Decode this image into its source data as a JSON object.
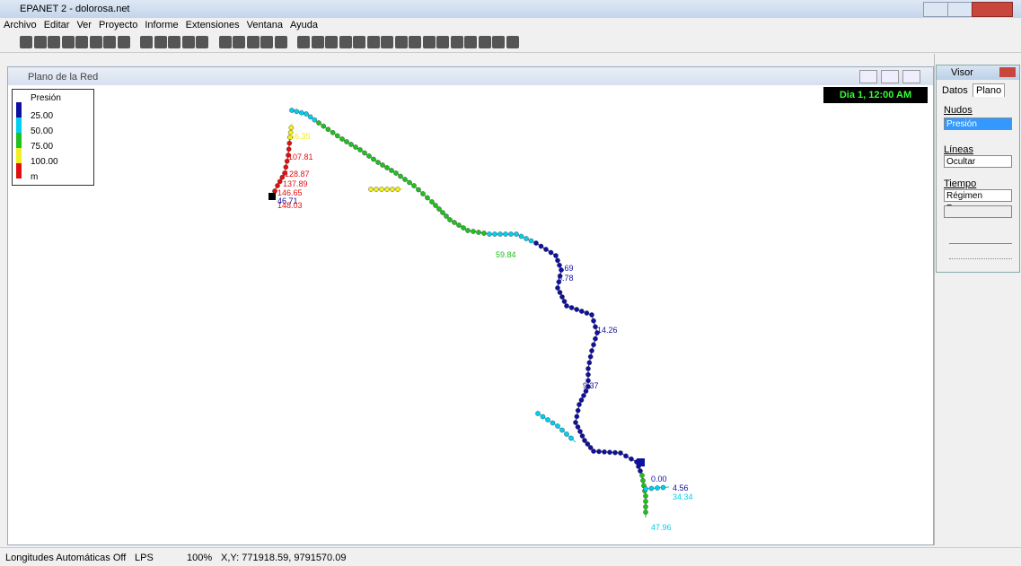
{
  "window": {
    "title": "EPANET 2 - dolorosa.net"
  },
  "menu": [
    "Archivo",
    "Editar",
    "Ver",
    "Proyecto",
    "Informe",
    "Extensiones",
    "Ventana",
    "Ayuda"
  ],
  "map_window": {
    "title": "Plano de la Red",
    "time": "Dia 1, 12:00 AM",
    "legend": {
      "title": "Presión",
      "items": [
        "25.00",
        "50.00",
        "75.00",
        "100.00"
      ],
      "unit": "m"
    },
    "node_labels": [
      "107.81",
      "128.87",
      "137.89",
      "146.65",
      "46.71",
      "148.03",
      "56.35",
      "59.84",
      "7.69",
      "6.78",
      "14.26",
      "9.37",
      "4.56",
      "34.34",
      "47.96",
      "0.00"
    ]
  },
  "visor": {
    "title": "Visor",
    "tabs": [
      "Datos",
      "Plano"
    ],
    "nodes_label": "Nudos",
    "nodes_value": "Presión",
    "links_label": "Líneas",
    "links_value": "Ocultar",
    "time_label": "Tiempo",
    "time_value": "Régimen Perma"
  },
  "status": [
    "Longitudes Automáticas Off",
    "LPS",
    "100%",
    "X,Y: 771918.59, 9791570.09"
  ]
}
